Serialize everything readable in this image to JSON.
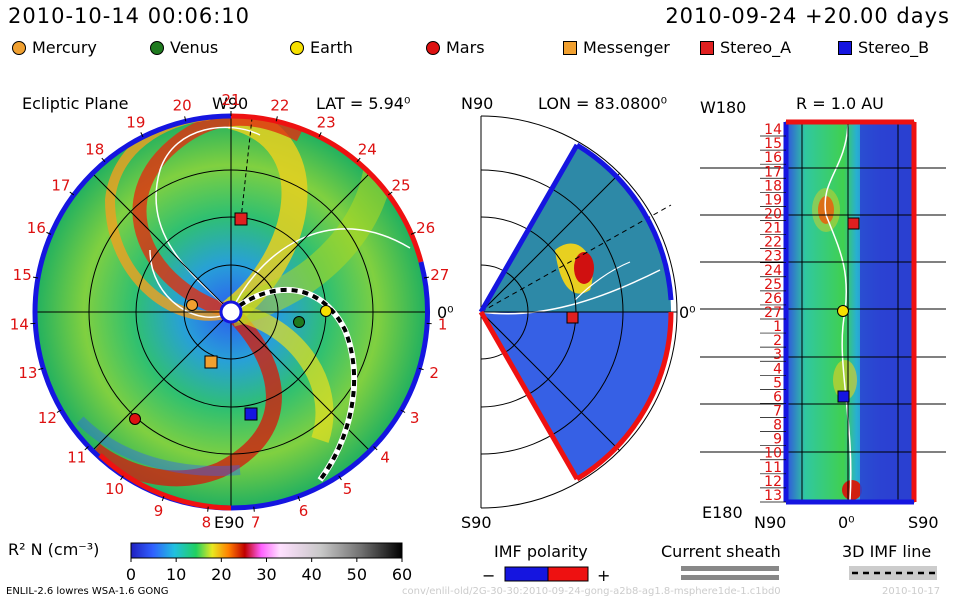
{
  "header": {
    "timestamp": "2010-10-14 00:06:10",
    "run_info": "2010-09-24 +20.00 days"
  },
  "legend": [
    {
      "label": "Mercury",
      "color": "#f0a030",
      "shape": "circle"
    },
    {
      "label": "Venus",
      "color": "#1f7a1f",
      "shape": "circle"
    },
    {
      "label": "Earth",
      "color": "#f6e000",
      "shape": "circle"
    },
    {
      "label": "Mars",
      "color": "#dd1111",
      "shape": "circle"
    },
    {
      "label": "Messenger",
      "color": "#f0a030",
      "shape": "square"
    },
    {
      "label": "Stereo_A",
      "color": "#e02020",
      "shape": "square"
    },
    {
      "label": "Stereo_B",
      "color": "#1515e0",
      "shape": "square"
    }
  ],
  "panels": {
    "ecliptic": {
      "title": "Ecliptic Plane",
      "top": "W90",
      "bottom": "E90",
      "lat": "LAT = 5.94⁰",
      "right_label": "0⁰"
    },
    "meridional": {
      "top": "N90",
      "bottom": "S90",
      "lon": "LON = 83.0800⁰",
      "right_label": "0⁰"
    },
    "radial": {
      "r": "R = 1.0 AU",
      "top_left": "W180",
      "bottom_left": "E180",
      "bottom_n": "N90",
      "bottom_zero": "0⁰",
      "bottom_s": "S90"
    }
  },
  "ring_labels_right": [
    "21",
    "22",
    "23",
    "24",
    "25",
    "26",
    "27",
    "1",
    "2",
    "3",
    "4",
    "5",
    "6"
  ],
  "ring_labels_left": [
    "20",
    "19",
    "18",
    "17",
    "16",
    "15",
    "14",
    "13",
    "12",
    "11",
    "10",
    "9",
    "8",
    "7"
  ],
  "radial_ticks": [
    "14",
    "15",
    "16",
    "17",
    "18",
    "19",
    "20",
    "21",
    "22",
    "23",
    "24",
    "25",
    "26",
    "27",
    "1",
    "2",
    "3",
    "4",
    "5",
    "6",
    "7",
    "8",
    "9",
    "10",
    "11",
    "12",
    "13"
  ],
  "chart_data": {
    "type": "heatmap",
    "colorbar": {
      "title": "R² N (cm⁻³)",
      "ticks": [
        "0",
        "10",
        "20",
        "30",
        "40",
        "50",
        "60"
      ],
      "range": [
        0,
        60
      ]
    }
  },
  "bottom_legends": {
    "imf_polarity": "IMF polarity",
    "minus": "−",
    "plus": "+",
    "current_sheath": "Current sheath",
    "imf_line": "3D IMF line",
    "colors": {
      "negative": "#1515e0",
      "positive": "#ee1111"
    }
  },
  "footer": {
    "model": "ENLIL-2.6 lowres WSA-1.6 GONG",
    "path": "conv/enlil-old/2G-30-30:2010-09-24-gong-a2b8-ag1.8-msphere1de-1.c1bd0",
    "date": "2010-10-17"
  }
}
